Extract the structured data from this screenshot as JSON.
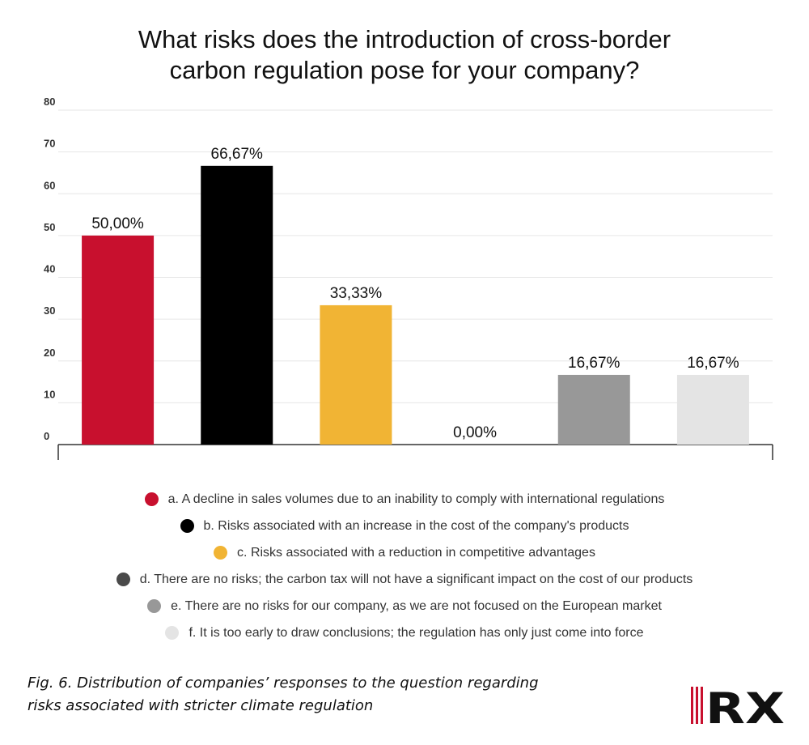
{
  "chart_data": {
    "type": "bar",
    "title": "What risks does the introduction of cross-border carbon regulation pose for your company?",
    "title_lines": [
      "What risks does the introduction of cross-border",
      "carbon regulation pose for your company?"
    ],
    "categories": [
      "a. A decline in sales volumes due to an inability to comply with international regulations",
      "b. Risks associated with an increase in the cost of the company's products",
      "c. Risks associated with a reduction in competitive advantages",
      "d. There are no risks; the carbon tax will not have a significant impact on the cost of our products",
      "e. There are no risks for our company, as we are not focused on the European market",
      "f. It is too early to draw conclusions; the regulation has only just come into force"
    ],
    "values": [
      50.0,
      66.67,
      33.33,
      0.0,
      16.67,
      16.67
    ],
    "data_labels": [
      "50,00%",
      "66,67%",
      "33,33%",
      "0,00%",
      "16,67%",
      "16,67%"
    ],
    "colors": [
      "#c8102e",
      "#000000",
      "#f1b434",
      "#4a4a4a",
      "#989898",
      "#e4e4e4"
    ],
    "ylim": [
      0,
      80
    ],
    "yticks": [
      "0",
      "10",
      "20",
      "30",
      "40",
      "50",
      "60",
      "70",
      "80"
    ],
    "grid": true,
    "legend_position": "bottom",
    "xlabel": "",
    "ylabel": ""
  },
  "caption": {
    "line1": "Fig. 6. Distribution of companies’ responses to the question regarding",
    "line2": "risks associated with stricter climate regulation"
  },
  "logo": {
    "text": "RX",
    "colors": {
      "red": "#c8102e",
      "black": "#111111"
    }
  }
}
